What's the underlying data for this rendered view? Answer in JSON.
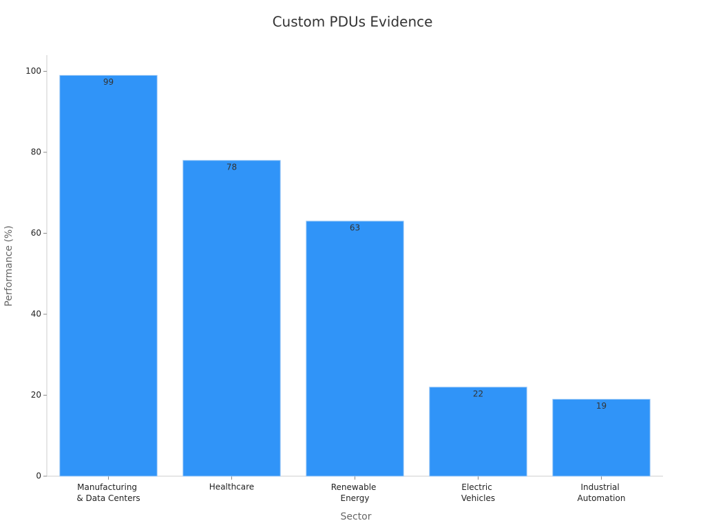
{
  "chart_data": {
    "type": "bar",
    "title": "Custom PDUs Evidence",
    "x_label": "Sector",
    "y_label": "Performance (%)",
    "categories": [
      "Manufacturing & Data Centers",
      "Healthcare",
      "Renewable Energy",
      "Electric Vehicles",
      "Industrial Automation"
    ],
    "values": [
      99,
      78,
      63,
      22,
      19
    ],
    "color": "#3094f8",
    "ylim": [
      0,
      104
    ],
    "yticks": [
      0,
      20,
      40,
      60,
      80,
      100
    ],
    "grid": false
  }
}
